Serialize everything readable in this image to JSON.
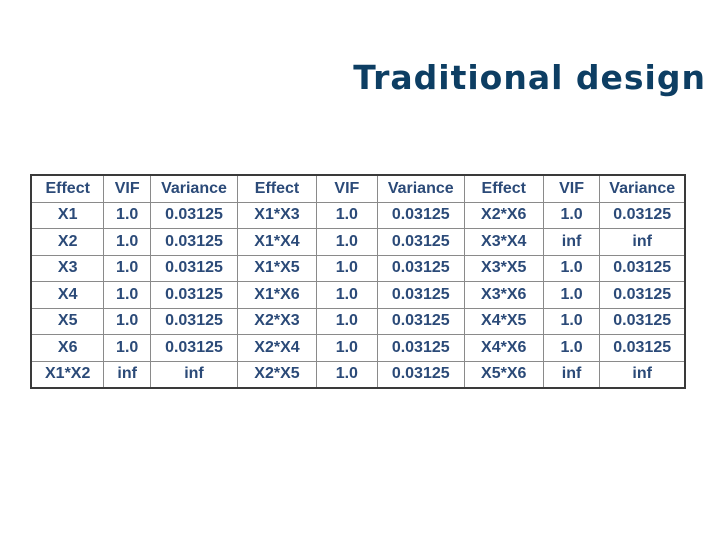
{
  "title": "Traditional design",
  "table": {
    "headers": [
      "Effect",
      "VIF",
      "Variance",
      "Effect",
      "VIF",
      "Variance",
      "Effect",
      "VIF",
      "Variance"
    ],
    "rows": [
      [
        "X1",
        "1.0",
        "0.03125",
        "X1*X3",
        "1.0",
        "0.03125",
        "X2*X6",
        "1.0",
        "0.03125"
      ],
      [
        "X2",
        "1.0",
        "0.03125",
        "X1*X4",
        "1.0",
        "0.03125",
        "X3*X4",
        "inf",
        "inf"
      ],
      [
        "X3",
        "1.0",
        "0.03125",
        "X1*X5",
        "1.0",
        "0.03125",
        "X3*X5",
        "1.0",
        "0.03125"
      ],
      [
        "X4",
        "1.0",
        "0.03125",
        "X1*X6",
        "1.0",
        "0.03125",
        "X3*X6",
        "1.0",
        "0.03125"
      ],
      [
        "X5",
        "1.0",
        "0.03125",
        "X2*X3",
        "1.0",
        "0.03125",
        "X4*X5",
        "1.0",
        "0.03125"
      ],
      [
        "X6",
        "1.0",
        "0.03125",
        "X2*X4",
        "1.0",
        "0.03125",
        "X4*X6",
        "1.0",
        "0.03125"
      ],
      [
        "X1*X2",
        "inf",
        "inf",
        "X2*X5",
        "1.0",
        "0.03125",
        "X5*X6",
        "inf",
        "inf"
      ]
    ]
  },
  "colors": {
    "title": "#0d3e63",
    "cell_text": "#2b4a78",
    "border": "#8a8a8a"
  }
}
